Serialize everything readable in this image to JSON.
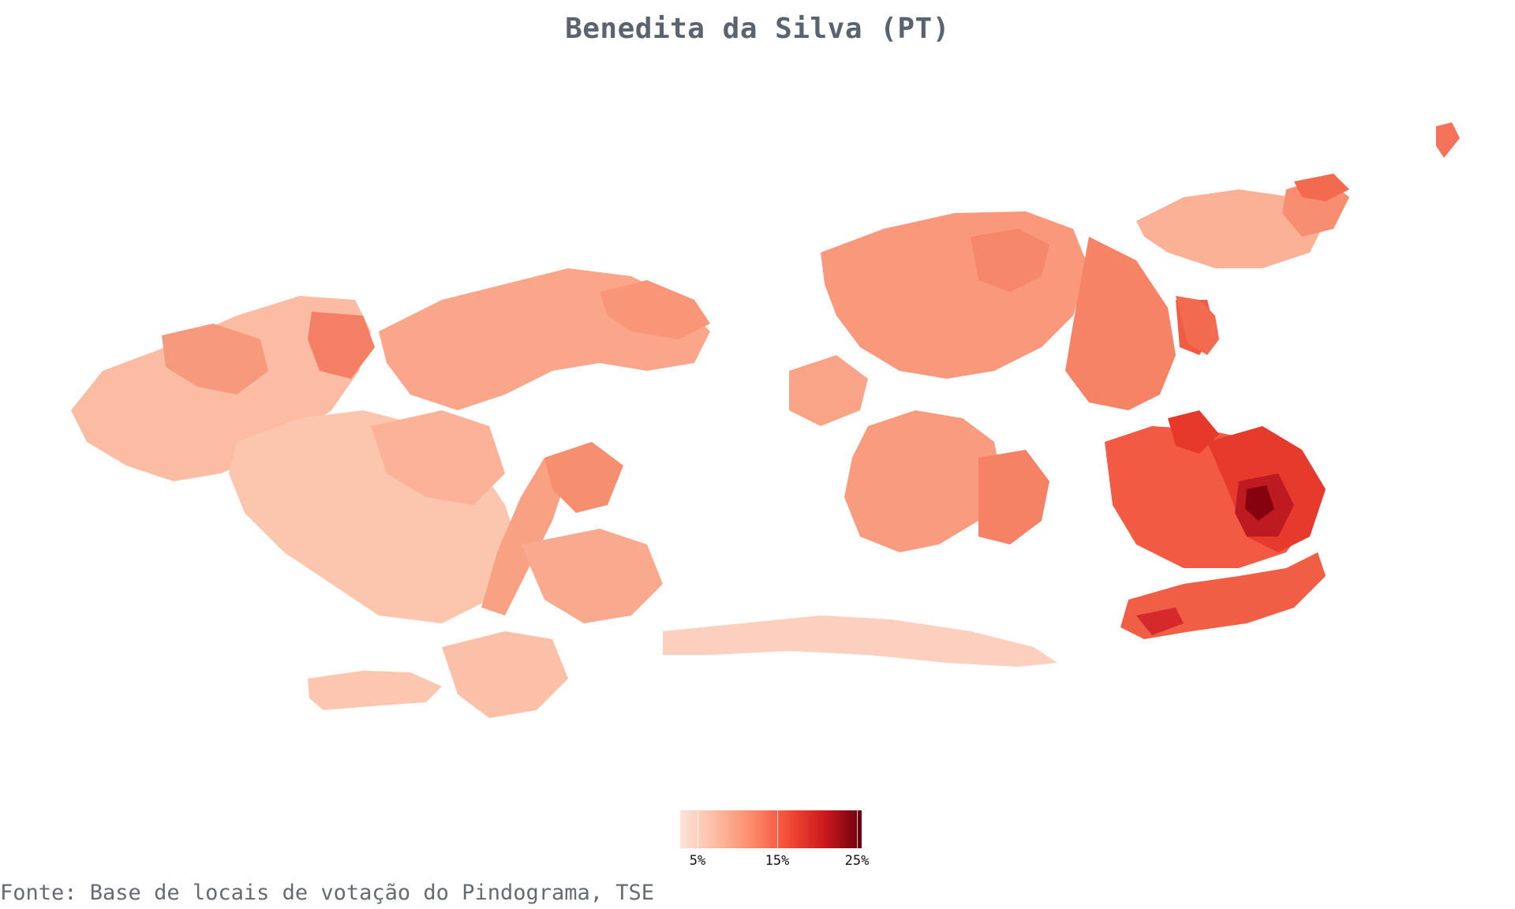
{
  "title": "Benedita da Silva (PT)",
  "source": "Fonte: Base de locais de votação do Pindograma, TSE",
  "legend": {
    "labels": [
      "5%",
      "15%",
      "25%"
    ],
    "min": 0,
    "max": 27,
    "colors": [
      "#fde3d8",
      "#fcbba1",
      "#fb8a6a",
      "#f24a36",
      "#cb181d",
      "#67000d"
    ]
  }
}
